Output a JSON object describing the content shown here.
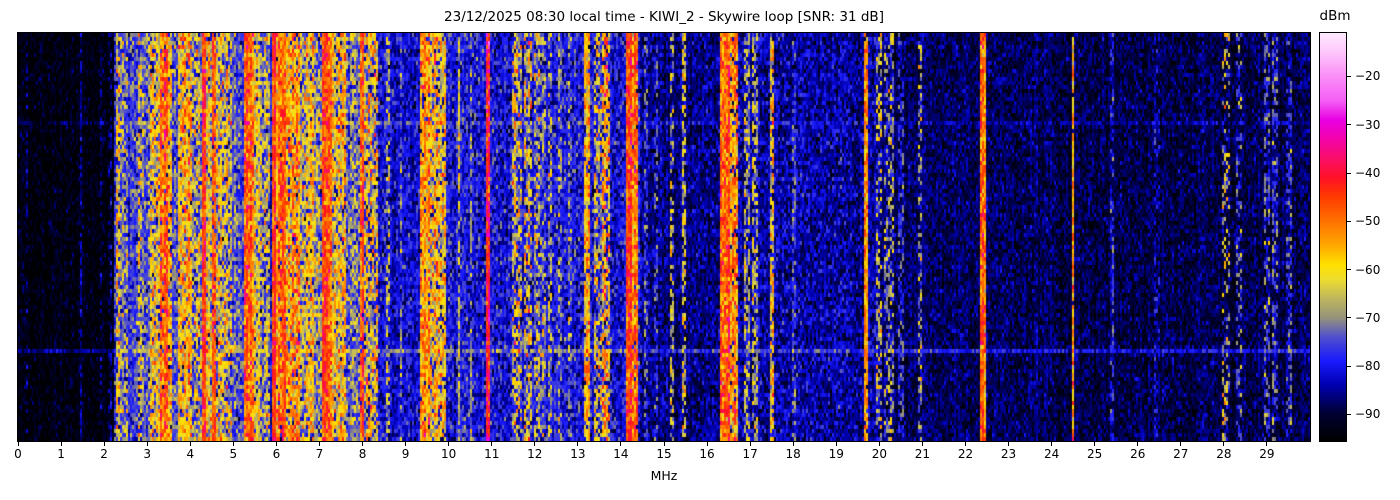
{
  "header": {
    "date": "23/12/2025",
    "time": "08:30 local time",
    "receiver": "KIWI_2",
    "antenna": "Skywire loop",
    "snr": "31 dB"
  },
  "chart_data": {
    "type": "heatmap",
    "title": "23/12/2025 08:30 local time - KIWI_2 - Skywire loop [SNR: 31 dB]",
    "xlabel": "MHz",
    "value_unit": "dBm",
    "x_range": [
      0,
      30
    ],
    "x_ticks": [
      "0",
      "1",
      "2",
      "3",
      "4",
      "5",
      "6",
      "7",
      "8",
      "9",
      "10",
      "11",
      "12",
      "13",
      "14",
      "15",
      "16",
      "17",
      "18",
      "19",
      "20",
      "21",
      "22",
      "23",
      "24",
      "25",
      "26",
      "27",
      "28",
      "29"
    ],
    "value_range": [
      -95.5,
      -11
    ],
    "colorbar_ticks": [
      {
        "v": -20,
        "label": "−20"
      },
      {
        "v": -30,
        "label": "−30"
      },
      {
        "v": -40,
        "label": "−40"
      },
      {
        "v": -50,
        "label": "−50"
      },
      {
        "v": -60,
        "label": "−60"
      },
      {
        "v": -70,
        "label": "−70"
      },
      {
        "v": -80,
        "label": "−80"
      },
      {
        "v": -90,
        "label": "−90"
      }
    ],
    "colormap_stops": [
      [
        0.0,
        "#000000"
      ],
      [
        0.065,
        "#000030"
      ],
      [
        0.136,
        "#0000b0"
      ],
      [
        0.195,
        "#1a1aff"
      ],
      [
        0.254,
        "#5050cd"
      ],
      [
        0.302,
        "#96937a"
      ],
      [
        0.349,
        "#bfb75e"
      ],
      [
        0.396,
        "#eedd30"
      ],
      [
        0.432,
        "#ffe100"
      ],
      [
        0.479,
        "#ffa800"
      ],
      [
        0.538,
        "#ff7300"
      ],
      [
        0.598,
        "#ff3c00"
      ],
      [
        0.645,
        "#ff1126"
      ],
      [
        0.692,
        "#fb0f66"
      ],
      [
        0.74,
        "#f303aa"
      ],
      [
        0.787,
        "#e900e2"
      ],
      [
        0.834,
        "#f55df5"
      ],
      [
        0.893,
        "#fa8df7"
      ],
      [
        0.953,
        "#fdc6fb"
      ],
      [
        1.0,
        "#ffeaff"
      ]
    ],
    "noise_regions": [
      [
        0.0,
        2.25,
        -94.0,
        2.8
      ],
      [
        2.25,
        8.6,
        -80.0,
        4.5
      ],
      [
        8.6,
        10.0,
        -82.0,
        4.0
      ],
      [
        10.0,
        14.45,
        -80.5,
        4.5
      ],
      [
        14.45,
        16.25,
        -86.0,
        3.5
      ],
      [
        16.25,
        20.0,
        -84.5,
        4.0
      ],
      [
        20.0,
        24.0,
        -88.0,
        3.0
      ],
      [
        24.0,
        30.0,
        -89.0,
        3.0
      ]
    ],
    "signal_bands": [
      [
        0.18,
        0.23,
        -86,
        3,
        0.5
      ],
      [
        1.44,
        1.5,
        -84,
        3,
        0.55
      ],
      [
        1.9,
        1.96,
        -87,
        3,
        0.4
      ],
      [
        2.1,
        2.16,
        -86,
        3,
        0.4
      ],
      [
        2.28,
        2.36,
        -62,
        6,
        0.75
      ],
      [
        2.36,
        2.56,
        -71,
        7,
        0.85
      ],
      [
        2.62,
        2.78,
        -76,
        5,
        0.85
      ],
      [
        2.78,
        2.86,
        -64,
        6,
        0.7
      ],
      [
        2.86,
        3.08,
        -73,
        6,
        0.85
      ],
      [
        3.08,
        3.18,
        -58,
        6,
        0.8
      ],
      [
        3.18,
        3.3,
        -62,
        7,
        0.85
      ],
      [
        3.3,
        3.48,
        -50,
        6,
        0.95
      ],
      [
        3.48,
        3.58,
        -60,
        6,
        0.9
      ],
      [
        3.58,
        3.72,
        -74,
        6,
        0.9
      ],
      [
        3.72,
        4.06,
        -57,
        7,
        0.9
      ],
      [
        4.06,
        4.28,
        -67,
        8,
        0.85
      ],
      [
        4.28,
        4.36,
        -46,
        5,
        1.0
      ],
      [
        4.36,
        4.52,
        -62,
        7,
        0.85
      ],
      [
        4.52,
        4.58,
        -50,
        5,
        0.95
      ],
      [
        4.58,
        4.96,
        -64,
        8,
        0.85
      ],
      [
        4.96,
        5.26,
        -74,
        6,
        0.9
      ],
      [
        5.26,
        5.48,
        -49,
        6,
        1.0
      ],
      [
        5.48,
        5.62,
        -60,
        6,
        0.9
      ],
      [
        5.62,
        5.84,
        -68,
        7,
        0.85
      ],
      [
        5.9,
        6.0,
        -45,
        5,
        1.0
      ],
      [
        6.0,
        6.14,
        -52,
        6,
        0.95
      ],
      [
        6.14,
        6.24,
        -46,
        5,
        1.0
      ],
      [
        6.24,
        6.56,
        -56,
        7,
        0.9
      ],
      [
        6.56,
        6.7,
        -66,
        7,
        0.85
      ],
      [
        6.7,
        6.86,
        -57,
        6,
        0.9
      ],
      [
        6.86,
        7.06,
        -66,
        7,
        0.85
      ],
      [
        7.06,
        7.3,
        -48,
        5,
        1.0
      ],
      [
        7.3,
        7.62,
        -60,
        7,
        0.9
      ],
      [
        7.62,
        7.92,
        -72,
        6,
        0.9
      ],
      [
        7.94,
        8.04,
        -47,
        5,
        0.95
      ],
      [
        8.04,
        8.38,
        -62,
        8,
        0.75
      ],
      [
        8.55,
        8.62,
        -70,
        6,
        0.6
      ],
      [
        8.85,
        8.92,
        -71,
        6,
        0.6
      ],
      [
        9.32,
        9.56,
        -54,
        6,
        0.95
      ],
      [
        9.56,
        9.96,
        -59,
        7,
        0.85
      ],
      [
        10.2,
        10.28,
        -68,
        5,
        0.75
      ],
      [
        10.5,
        10.56,
        -73,
        5,
        0.7
      ],
      [
        10.86,
        10.96,
        -43,
        6,
        1.0
      ],
      [
        11.48,
        11.6,
        -63,
        8,
        0.65
      ],
      [
        11.62,
        11.72,
        -65,
        8,
        0.6
      ],
      [
        11.76,
        11.94,
        -64,
        8,
        0.65
      ],
      [
        12.0,
        12.1,
        -68,
        7,
        0.7
      ],
      [
        12.12,
        12.24,
        -69,
        7,
        0.65
      ],
      [
        12.3,
        12.4,
        -70,
        7,
        0.6
      ],
      [
        12.55,
        12.62,
        -72,
        6,
        0.55
      ],
      [
        12.78,
        12.86,
        -73,
        6,
        0.55
      ],
      [
        13.14,
        13.26,
        -57,
        6,
        0.9
      ],
      [
        13.36,
        13.56,
        -64,
        8,
        0.65
      ],
      [
        13.56,
        13.76,
        -58,
        9,
        0.75
      ],
      [
        14.14,
        14.28,
        -46,
        5,
        1.0
      ],
      [
        14.28,
        14.4,
        -51,
        6,
        0.95
      ],
      [
        14.55,
        14.62,
        -75,
        5,
        0.6
      ],
      [
        14.78,
        14.85,
        -75,
        5,
        0.55
      ],
      [
        15.14,
        15.24,
        -68,
        6,
        0.6
      ],
      [
        15.4,
        15.5,
        -66,
        6,
        0.65
      ],
      [
        16.28,
        16.52,
        -48,
        6,
        1.0
      ],
      [
        16.52,
        16.72,
        -55,
        7,
        0.9
      ],
      [
        16.88,
        17.0,
        -68,
        6,
        0.65
      ],
      [
        17.04,
        17.16,
        -67,
        6,
        0.65
      ],
      [
        17.44,
        17.54,
        -60,
        6,
        0.8
      ],
      [
        17.98,
        18.06,
        -76,
        5,
        0.6
      ],
      [
        19.66,
        19.74,
        -56,
        5,
        0.95
      ],
      [
        19.92,
        20.06,
        -68,
        7,
        0.55
      ],
      [
        20.1,
        20.32,
        -72,
        8,
        0.6
      ],
      [
        20.44,
        20.56,
        -78,
        5,
        0.6
      ],
      [
        20.88,
        21.0,
        -72,
        7,
        0.5
      ],
      [
        22.36,
        22.46,
        -50,
        6,
        1.0
      ],
      [
        24.46,
        24.54,
        -53,
        6,
        0.95
      ],
      [
        25.34,
        25.46,
        -80,
        5,
        0.6
      ],
      [
        26.4,
        26.5,
        -83,
        4,
        0.5
      ],
      [
        27.94,
        28.12,
        -66,
        8,
        0.35
      ],
      [
        28.3,
        28.4,
        -74,
        6,
        0.4
      ],
      [
        28.94,
        29.06,
        -76,
        6,
        0.6
      ],
      [
        29.14,
        29.26,
        -76,
        6,
        0.6
      ],
      [
        29.46,
        29.56,
        -78,
        5,
        0.6
      ]
    ],
    "time_sweeps": [
      {
        "frac": 0.215,
        "boost": 4
      },
      {
        "frac": 0.777,
        "boost": 9
      }
    ],
    "bins": 646,
    "rows": 102,
    "seed": 42
  }
}
